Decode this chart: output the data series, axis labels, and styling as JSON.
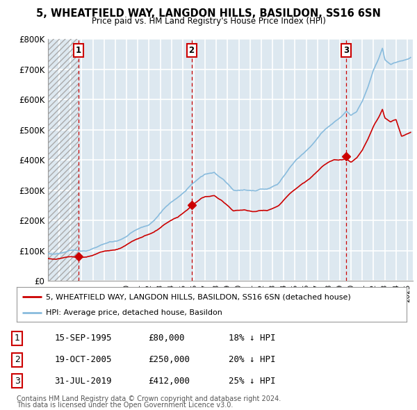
{
  "title": "5, WHEATFIELD WAY, LANGDON HILLS, BASILDON, SS16 6SN",
  "subtitle": "Price paid vs. HM Land Registry's House Price Index (HPI)",
  "ylim": [
    0,
    800000
  ],
  "yticks": [
    0,
    100000,
    200000,
    300000,
    400000,
    500000,
    600000,
    700000,
    800000
  ],
  "ytick_labels": [
    "£0",
    "£100K",
    "£200K",
    "£300K",
    "£400K",
    "£500K",
    "£600K",
    "£700K",
    "£800K"
  ],
  "xlim_start": 1993.0,
  "xlim_end": 2025.5,
  "sales": [
    {
      "date_num": 1995.71,
      "price": 80000,
      "label": "1",
      "date_str": "15-SEP-1995",
      "price_str": "£80,000",
      "pct_str": "18% ↓ HPI"
    },
    {
      "date_num": 2005.79,
      "price": 250000,
      "label": "2",
      "date_str": "19-OCT-2005",
      "price_str": "£250,000",
      "pct_str": "20% ↓ HPI"
    },
    {
      "date_num": 2019.58,
      "price": 412000,
      "label": "3",
      "date_str": "31-JUL-2019",
      "price_str": "£412,000",
      "pct_str": "25% ↓ HPI"
    }
  ],
  "line_color_red": "#cc0000",
  "line_color_blue": "#88bbdd",
  "plot_bg_color": "#dde8f0",
  "grid_color": "#ffffff",
  "hatch_color": "#bbbbbb",
  "legend_line1": "5, WHEATFIELD WAY, LANGDON HILLS, BASILDON, SS16 6SN (detached house)",
  "legend_line2": "HPI: Average price, detached house, Basildon",
  "footer1": "Contains HM Land Registry data © Crown copyright and database right 2024.",
  "footer2": "This data is licensed under the Open Government Licence v3.0."
}
